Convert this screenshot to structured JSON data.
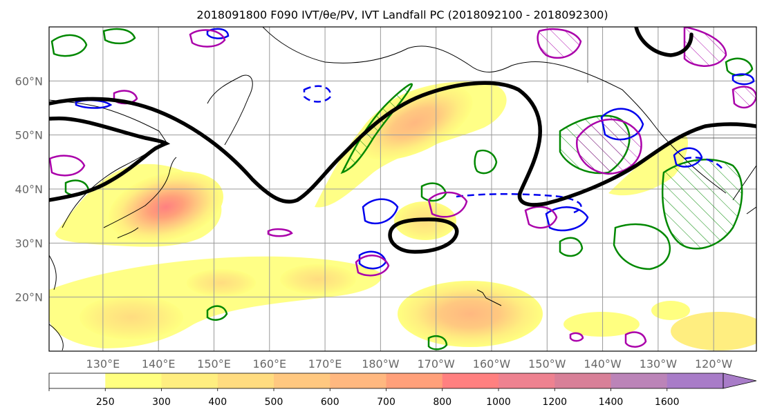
{
  "chart_data": {
    "type": "map",
    "title": "2018091800 F090 IVT/θe/PV, IVT Landfall PC (2018092100 - 2018092300)",
    "lat_ticks": [
      {
        "value": 60,
        "label": "60°N"
      },
      {
        "value": 50,
        "label": "50°N"
      },
      {
        "value": 40,
        "label": "40°N"
      },
      {
        "value": 30,
        "label": "30°N"
      },
      {
        "value": 20,
        "label": "20°N"
      }
    ],
    "lon_ticks": [
      {
        "value": 130,
        "label": "130°E"
      },
      {
        "value": 140,
        "label": "140°E"
      },
      {
        "value": 150,
        "label": "150°E"
      },
      {
        "value": 160,
        "label": "160°E"
      },
      {
        "value": 170,
        "label": "170°E"
      },
      {
        "value": 180,
        "label": "180°W"
      },
      {
        "value": 190,
        "label": "170°W"
      },
      {
        "value": 200,
        "label": "160°W"
      },
      {
        "value": 210,
        "label": "150°W"
      },
      {
        "value": 220,
        "label": "140°W"
      },
      {
        "value": 230,
        "label": "130°W"
      },
      {
        "value": 240,
        "label": "120°W"
      }
    ],
    "lon_range": [
      120.3,
      247.7
    ],
    "lat_range": [
      10,
      70
    ],
    "grid": true,
    "colorbar": {
      "levels": [
        250,
        300,
        400,
        500,
        600,
        700,
        800,
        1000,
        1200,
        1400,
        1600
      ],
      "labels": [
        "250",
        "300",
        "400",
        "500",
        "600",
        "700",
        "800",
        "1000",
        "1200",
        "1400",
        "1600"
      ],
      "colors": [
        "#ffffff",
        "#ffff80",
        "#ffee80",
        "#ffdc80",
        "#ffc880",
        "#ffb880",
        "#ffa07a",
        "#ff8080",
        "#ee8290",
        "#d88098",
        "#bb84b8",
        "#a87cc8"
      ],
      "extend": "max"
    },
    "ivt_centers": [
      {
        "lon": 139,
        "lat": 35,
        "peak": 800
      },
      {
        "lon": 188,
        "lat": 52,
        "peak": 650
      },
      {
        "lon": 139,
        "lat": 16,
        "peak": 450
      },
      {
        "lon": 201,
        "lat": 18,
        "peak": 550
      },
      {
        "lon": 176,
        "lat": 22,
        "peak": 350
      },
      {
        "lon": 190,
        "lat": 32,
        "peak": 350
      },
      {
        "lon": 233,
        "lat": 45,
        "peak": 300
      },
      {
        "lon": 241,
        "lat": 15,
        "peak": 300
      }
    ],
    "contour_colors": {
      "theta_e": "#000000",
      "pv": "#aa00aa",
      "ivt_pc_pos": "#008800",
      "ivt_pc_neg": "#0000ff"
    }
  }
}
